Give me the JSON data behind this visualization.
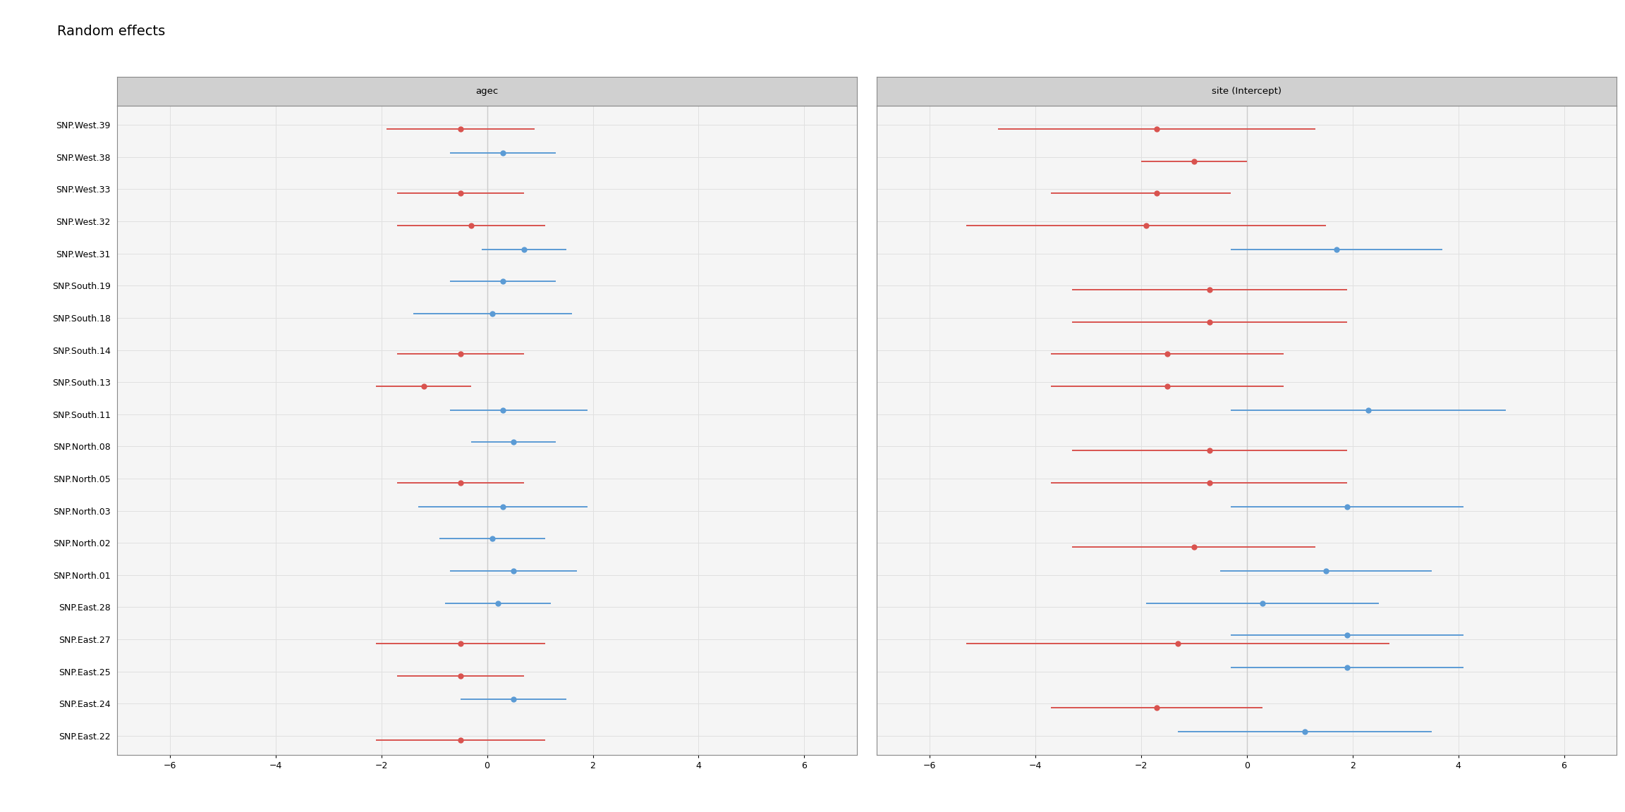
{
  "title": "Random effects",
  "panel1_title": "agec",
  "panel2_title": "site (Intercept)",
  "groups": [
    "SNP.West.39",
    "SNP.West.38",
    "SNP.West.33",
    "SNP.West.32",
    "SNP.West.31",
    "SNP.South.19",
    "SNP.South.18",
    "SNP.South.14",
    "SNP.South.13",
    "SNP.South.11",
    "SNP.North.08",
    "SNP.North.05",
    "SNP.North.03",
    "SNP.North.02",
    "SNP.North.01",
    "SNP.East.28",
    "SNP.East.27",
    "SNP.East.25",
    "SNP.East.24",
    "SNP.East.22"
  ],
  "agec": {
    "red": {
      "values": [
        -0.5,
        null,
        -0.5,
        -0.3,
        null,
        null,
        null,
        -0.5,
        -1.2,
        null,
        null,
        -0.5,
        null,
        null,
        null,
        null,
        -0.5,
        -0.5,
        null,
        -0.5
      ],
      "lo": [
        -1.9,
        null,
        -1.7,
        -1.7,
        null,
        null,
        null,
        -1.7,
        -2.1,
        null,
        null,
        -1.7,
        null,
        null,
        null,
        null,
        -2.1,
        -1.7,
        null,
        -2.1
      ],
      "hi": [
        0.9,
        null,
        0.7,
        1.1,
        null,
        null,
        null,
        0.7,
        -0.3,
        null,
        null,
        0.7,
        null,
        null,
        null,
        null,
        1.1,
        0.7,
        null,
        1.1
      ]
    },
    "blue": {
      "values": [
        null,
        0.3,
        null,
        null,
        0.7,
        0.3,
        0.1,
        null,
        null,
        0.3,
        0.5,
        null,
        0.3,
        0.1,
        0.5,
        0.2,
        null,
        null,
        0.5,
        null
      ],
      "lo": [
        null,
        -0.7,
        null,
        null,
        -0.1,
        -0.7,
        -1.4,
        null,
        null,
        -0.7,
        -0.3,
        null,
        -1.3,
        -0.9,
        -0.7,
        -0.8,
        null,
        null,
        -0.5,
        null
      ],
      "hi": [
        null,
        1.3,
        null,
        null,
        1.5,
        1.3,
        1.6,
        null,
        null,
        1.9,
        1.3,
        null,
        1.9,
        1.1,
        1.7,
        1.2,
        null,
        null,
        1.5,
        null
      ]
    }
  },
  "intercept": {
    "red": {
      "values": [
        -1.7,
        -1.0,
        -1.7,
        -1.9,
        null,
        -0.7,
        -0.7,
        -1.5,
        -1.5,
        null,
        -0.7,
        -0.7,
        null,
        -1.0,
        null,
        null,
        -1.3,
        null,
        -1.7,
        null
      ],
      "lo": [
        -4.7,
        -2.0,
        -3.7,
        -5.3,
        null,
        -3.3,
        -3.3,
        -3.7,
        -3.7,
        null,
        -3.3,
        -3.7,
        null,
        -3.3,
        null,
        null,
        -5.3,
        null,
        -3.7,
        null
      ],
      "hi": [
        1.3,
        0.0,
        -0.3,
        1.5,
        null,
        1.9,
        1.9,
        0.7,
        0.7,
        null,
        1.9,
        1.9,
        null,
        1.3,
        null,
        null,
        2.7,
        null,
        0.3,
        null
      ]
    },
    "blue": {
      "values": [
        null,
        null,
        null,
        null,
        1.7,
        null,
        null,
        null,
        null,
        2.3,
        null,
        null,
        1.9,
        null,
        1.5,
        0.3,
        1.9,
        1.9,
        null,
        1.1
      ],
      "lo": [
        null,
        null,
        null,
        null,
        -0.3,
        null,
        null,
        null,
        null,
        -0.3,
        null,
        null,
        -0.3,
        null,
        -0.5,
        -1.9,
        -0.3,
        -0.3,
        null,
        -1.3
      ],
      "hi": [
        null,
        null,
        null,
        null,
        3.7,
        null,
        null,
        null,
        null,
        4.9,
        null,
        null,
        4.1,
        null,
        3.5,
        2.5,
        4.1,
        4.1,
        null,
        3.5
      ]
    }
  },
  "xlim": [
    -7,
    7
  ],
  "xticks": [
    -6,
    -4,
    -2,
    0,
    2,
    4,
    6
  ],
  "red_color": "#d9534f",
  "blue_color": "#5b9bd5",
  "bg_color": "#f5f5f5",
  "panel_header_color": "#d0d0d0",
  "grid_color": "#e0e0e0",
  "title_fontsize": 14,
  "label_fontsize": 9,
  "tick_fontsize": 9,
  "marker_size": 5
}
